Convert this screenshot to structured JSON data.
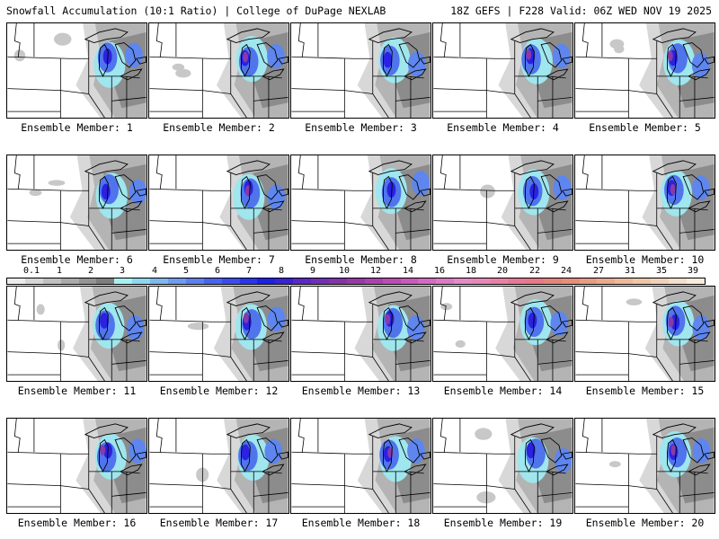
{
  "header": {
    "left": "Snowfall Accumulation (10:1 Ratio) | College of DuPage NEXLAB",
    "right": "18Z GEFS | F228 Valid: 06Z WED NOV 19 2025"
  },
  "colorbar": {
    "labels": [
      "0.1",
      "1",
      "2",
      "3",
      "4",
      "5",
      "6",
      "7",
      "8",
      "9",
      "10",
      "12",
      "14",
      "16",
      "18",
      "20",
      "22",
      "24",
      "27",
      "31",
      "35",
      "39"
    ],
    "colors": [
      "#ececec",
      "#d6d6d6",
      "#c0c0c0",
      "#aaaaaa",
      "#949494",
      "#7e7e7e",
      "#a8f0f0",
      "#8fd6ee",
      "#7fb8ef",
      "#6e9cf0",
      "#5c80f0",
      "#4a64f0",
      "#3a4cf0",
      "#2a36ee",
      "#1a22e8",
      "#3a22d6",
      "#5a2ac6",
      "#7030b6",
      "#8434a8",
      "#983aa6",
      "#aa42ac",
      "#bb4cb4",
      "#c85aba",
      "#d46ac2",
      "#dc7ac6",
      "#e48ac6",
      "#e888b8",
      "#ea80a8",
      "#e87898",
      "#e67888",
      "#e4847c",
      "#e68e7a",
      "#e89c84",
      "#eaaa8e",
      "#ecba9a",
      "#eec6a8",
      "#f0d2b8",
      "#f4decc",
      "#f8ecdc"
    ]
  },
  "panels": [
    {
      "label": "Ensemble Member: 1"
    },
    {
      "label": "Ensemble Member: 2"
    },
    {
      "label": "Ensemble Member: 3"
    },
    {
      "label": "Ensemble Member: 4"
    },
    {
      "label": "Ensemble Member: 5"
    },
    {
      "label": "Ensemble Member: 6"
    },
    {
      "label": "Ensemble Member: 7"
    },
    {
      "label": "Ensemble Member: 8"
    },
    {
      "label": "Ensemble Member: 9"
    },
    {
      "label": "Ensemble Member: 10"
    },
    {
      "label": "Ensemble Member: 11"
    },
    {
      "label": "Ensemble Member: 12"
    },
    {
      "label": "Ensemble Member: 13"
    },
    {
      "label": "Ensemble Member: 14"
    },
    {
      "label": "Ensemble Member: 15"
    },
    {
      "label": "Ensemble Member: 16"
    },
    {
      "label": "Ensemble Member: 17"
    },
    {
      "label": "Ensemble Member: 18"
    },
    {
      "label": "Ensemble Member: 19"
    },
    {
      "label": "Ensemble Member: 20"
    }
  ]
}
